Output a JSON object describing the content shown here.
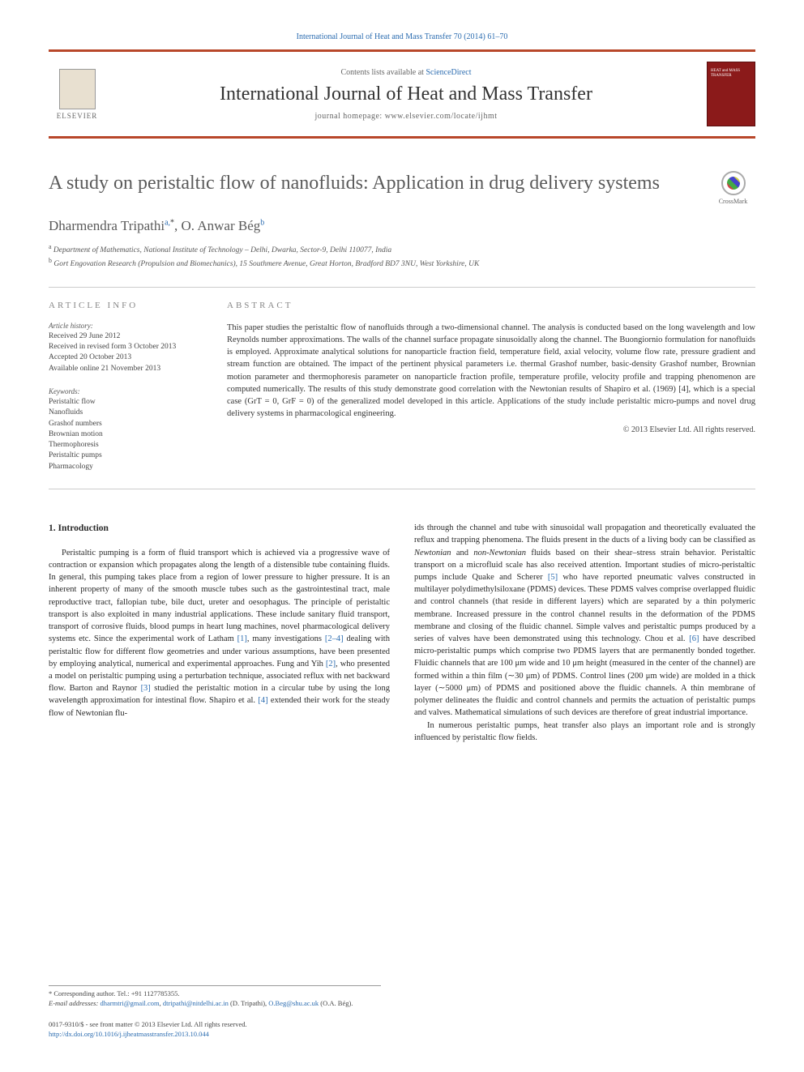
{
  "journal_ref": "International Journal of Heat and Mass Transfer 70 (2014) 61–70",
  "header": {
    "contents_prefix": "Contents lists available at ",
    "contents_link": "ScienceDirect",
    "journal_name": "International Journal of Heat and Mass Transfer",
    "homepage_prefix": "journal homepage: ",
    "homepage_url": "www.elsevier.com/locate/ijhmt",
    "publisher": "ELSEVIER",
    "cover_label": "HEAT and MASS TRANSFER"
  },
  "title": "A study on peristaltic flow of nanofluids: Application in drug delivery systems",
  "crossmark_label": "CrossMark",
  "authors_html": "Dharmendra Tripathi",
  "author1_sup": "a,",
  "author1_star": "*",
  "authors_sep": ", ",
  "author2": "O. Anwar Bég",
  "author2_sup": "b",
  "affiliations": {
    "a": "Department of Mathematics, National Institute of Technology – Delhi, Dwarka, Sector-9, Delhi 110077, India",
    "b": "Gort Engovation Research (Propulsion and Biomechanics), 15 Southmere Avenue, Great Horton, Bradford BD7 3NU, West Yorkshire, UK"
  },
  "info": {
    "heading": "ARTICLE INFO",
    "history_label": "Article history:",
    "history": [
      "Received 29 June 2012",
      "Received in revised form 3 October 2013",
      "Accepted 20 October 2013",
      "Available online 21 November 2013"
    ],
    "keywords_label": "Keywords:",
    "keywords": [
      "Peristaltic flow",
      "Nanofluids",
      "Grashof numbers",
      "Brownian motion",
      "Thermophoresis",
      "Peristaltic pumps",
      "Pharmacology"
    ]
  },
  "abstract": {
    "heading": "ABSTRACT",
    "text": "This paper studies the peristaltic flow of nanofluids through a two-dimensional channel. The analysis is conducted based on the long wavelength and low Reynolds number approximations. The walls of the channel surface propagate sinusoidally along the channel. The Buongiornio formulation for nanofluids is employed. Approximate analytical solutions for nanoparticle fraction field, temperature field, axial velocity, volume flow rate, pressure gradient and stream function are obtained. The impact of the pertinent physical parameters i.e. thermal Grashof number, basic-density Grashof number, Brownian motion parameter and thermophoresis parameter on nanoparticle fraction profile, temperature profile, velocity profile and trapping phenomenon are computed numerically. The results of this study demonstrate good correlation with the Newtonian results of Shapiro et al. (1969) [4], which is a special case (GrT = 0, GrF = 0) of the generalized model developed in this article. Applications of the study include peristaltic micro-pumps and novel drug delivery systems in pharmacological engineering.",
    "copyright": "© 2013 Elsevier Ltd. All rights reserved."
  },
  "sections": {
    "intro_heading": "1. Introduction",
    "col1_p1a": "Peristaltic pumping is a form of fluid transport which is achieved via a progressive wave of contraction or expansion which propagates along the length of a distensible tube containing fluids. In general, this pumping takes place from a region of lower pressure to higher pressure. It is an inherent property of many of the smooth muscle tubes such as the gastrointestinal tract, male reproductive tract, fallopian tube, bile duct, ureter and oesophagus. The principle of peristaltic transport is also exploited in many industrial applications. These include sanitary fluid transport, transport of corrosive fluids, blood pumps in heart lung machines, novel pharmacological delivery systems etc. Since the experimental work of Latham ",
    "ref1": "[1]",
    "col1_p1b": ", many investigations ",
    "ref2_4": "[2–4]",
    "col1_p1c": " dealing with peristaltic flow for different flow geometries and under various assumptions, have been presented by employing analytical, numerical and experimental approaches. Fung and Yih ",
    "ref2": "[2]",
    "col1_p1d": ", who presented a model on peristaltic pumping using a perturbation technique, associated reflux with net backward flow. Barton and Raynor ",
    "ref3": "[3]",
    "col1_p1e": " studied the peristaltic motion in a circular tube by using the long wavelength approximation for intestinal flow. Shapiro et al. ",
    "ref4": "[4]",
    "col1_p1f": " extended their work for the steady flow of Newtonian flu-",
    "col2_p1a": "ids through the channel and tube with sinusoidal wall propagation and theoretically evaluated the reflux and trapping phenomena. The fluids present in the ducts of a living body can be classified as ",
    "italic1": "Newtonian",
    "col2_p1b": " and ",
    "italic2": "non-Newtonian",
    "col2_p1c": " fluids based on their shear–stress strain behavior. Peristaltic transport on a microfluid scale has also received attention. Important studies of micro-peristaltic pumps include Quake and Scherer ",
    "ref5": "[5]",
    "col2_p1d": " who have reported pneumatic valves constructed in multilayer polydimethylsiloxane (PDMS) devices. These PDMS valves comprise overlapped fluidic and control channels (that reside in different layers) which are separated by a thin polymeric membrane. Increased pressure in the control channel results in the deformation of the PDMS membrane and closing of the fluidic channel. Simple valves and peristaltic pumps produced by a series of valves have been demonstrated using this technology. Chou et al. ",
    "ref6": "[6]",
    "col2_p1e": " have described micro-peristaltic pumps which comprise two PDMS layers that are permanently bonded together. Fluidic channels that are 100 μm wide and 10 μm height (measured in the center of the channel) are formed within a thin film (∼30 μm) of PDMS. Control lines (200 μm wide) are molded in a thick layer (∼5000 μm) of PDMS and positioned above the fluidic channels. A thin membrane of polymer delineates the fluidic and control channels and permits the actuation of peristaltic pumps and valves. Mathematical simulations of such devices are therefore of great industrial importance.",
    "col2_p2": "In numerous peristaltic pumps, heat transfer also plays an important role and is strongly influenced by peristaltic flow fields."
  },
  "footer": {
    "corr_label": "* Corresponding author. Tel.: +91 1127785355.",
    "email_label": "E-mail addresses:",
    "email1": "dharmtri@gmail.com",
    "email_sep1": ", ",
    "email2": "dtripathi@nitdelhi.ac.in",
    "email_name1": " (D. Tripathi), ",
    "email3": "O.Beg@shu.ac.uk",
    "email_name2": " (O.A. Bég).",
    "issn_line": "0017-9310/$ - see front matter © 2013 Elsevier Ltd. All rights reserved.",
    "doi_url": "http://dx.doi.org/10.1016/j.ijheatmasstransfer.2013.10.044"
  },
  "colors": {
    "accent": "#b8472a",
    "link": "#2b6cb0",
    "heading_gray": "#5a5a5a",
    "text": "#333333",
    "cover_bg": "#8b1a1a"
  }
}
